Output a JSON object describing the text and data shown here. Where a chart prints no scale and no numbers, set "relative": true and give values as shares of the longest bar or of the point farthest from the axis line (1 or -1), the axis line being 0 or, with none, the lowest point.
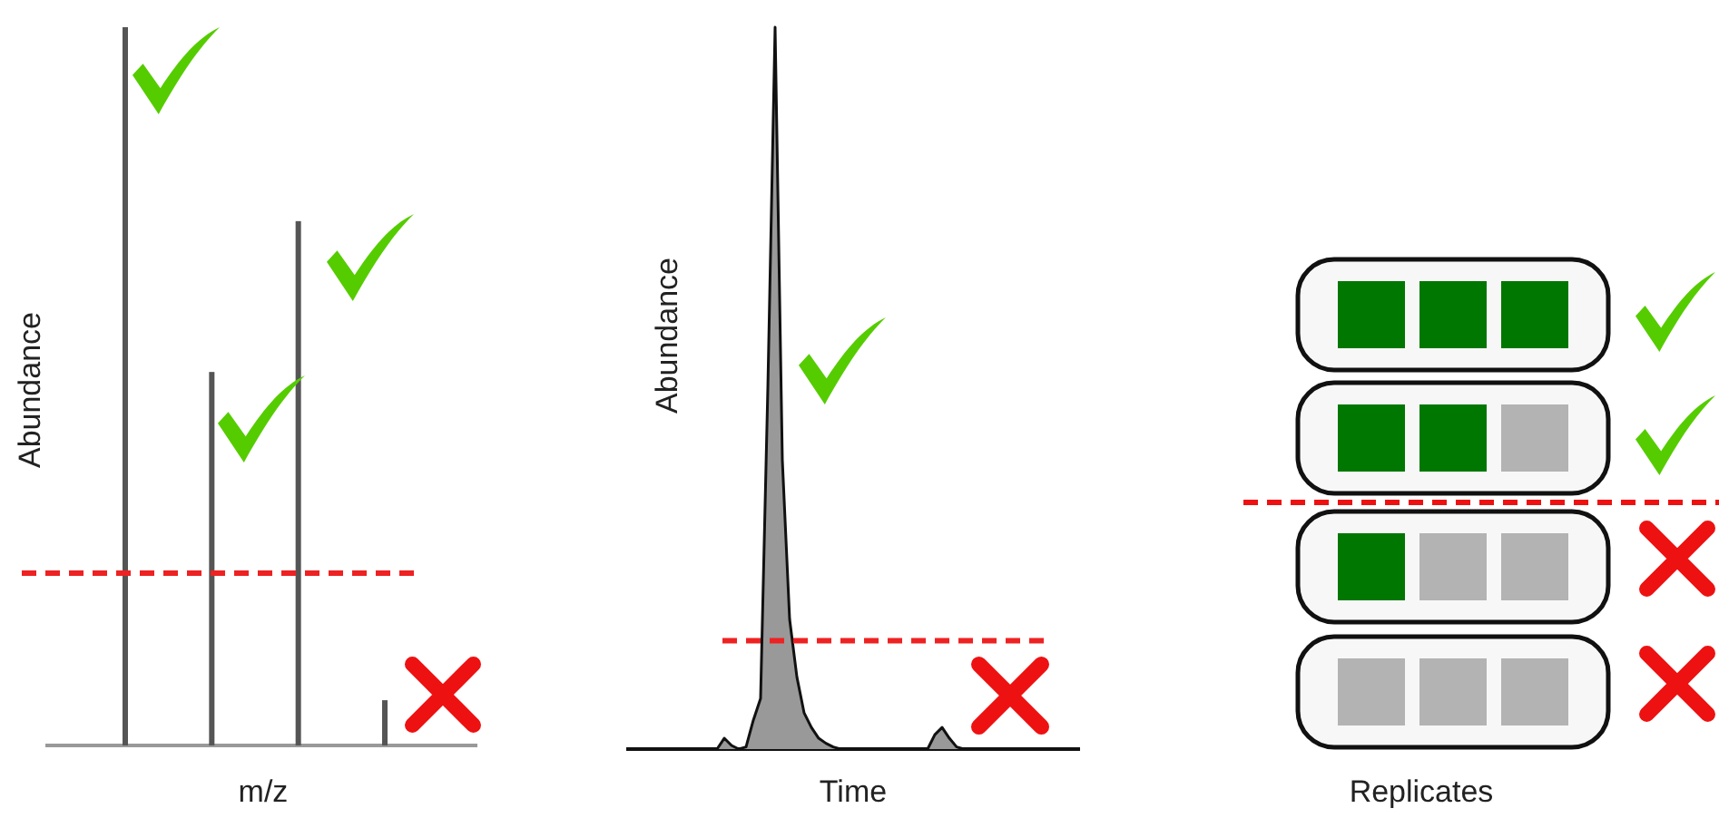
{
  "chart_data": [
    {
      "type": "bar",
      "relative": true,
      "xlabel": "m/z",
      "ylabel": "Abundance",
      "categories": [
        null,
        null,
        null,
        null
      ],
      "values": [
        1,
        0.52,
        0.73,
        0.063
      ],
      "color": "#555555",
      "ref_lines": [
        {
          "axis": "y",
          "value": 0.24,
          "color": "#ee2222",
          "line_style": "dashed"
        }
      ]
    },
    {
      "type": "area",
      "relative": true,
      "xlabel": "Time",
      "ylabel": "Abundance",
      "categories": [
        null,
        null,
        null,
        null,
        null,
        null,
        null,
        null,
        null,
        null,
        null,
        null,
        null,
        null,
        null,
        null,
        null,
        null,
        null,
        null,
        null,
        null,
        null,
        null,
        null,
        null,
        null,
        null,
        null,
        null,
        null,
        null,
        null,
        null,
        null,
        null,
        null,
        null,
        null,
        null,
        null,
        null,
        null,
        null,
        null,
        null,
        null,
        null,
        null,
        null,
        null,
        null,
        null,
        null,
        null,
        null,
        null,
        null,
        null,
        null,
        null,
        null
      ],
      "values": [
        0,
        0,
        0,
        0,
        0,
        0,
        0,
        0,
        0,
        0,
        0,
        0,
        0,
        0.015,
        0.005,
        0,
        0.003,
        0.04,
        0.07,
        0.5,
        1,
        0.4,
        0.18,
        0.1,
        0.05,
        0.03,
        0.015,
        0.008,
        0.003,
        0,
        0,
        0,
        0,
        0,
        0,
        0,
        0,
        0,
        0,
        0,
        0,
        0,
        0.02,
        0.03,
        0.015,
        0.003,
        0,
        0,
        0,
        0,
        0,
        0,
        0,
        0,
        0,
        0,
        0,
        0,
        0,
        0,
        0,
        0
      ],
      "color": "#999999",
      "ref_lines": [
        {
          "axis": "y",
          "value": 0.15,
          "color": "#ee2222",
          "line_style": "dashed"
        }
      ]
    },
    {
      "type": "other",
      "xlabel": "Replicates"
    }
  ]
}
